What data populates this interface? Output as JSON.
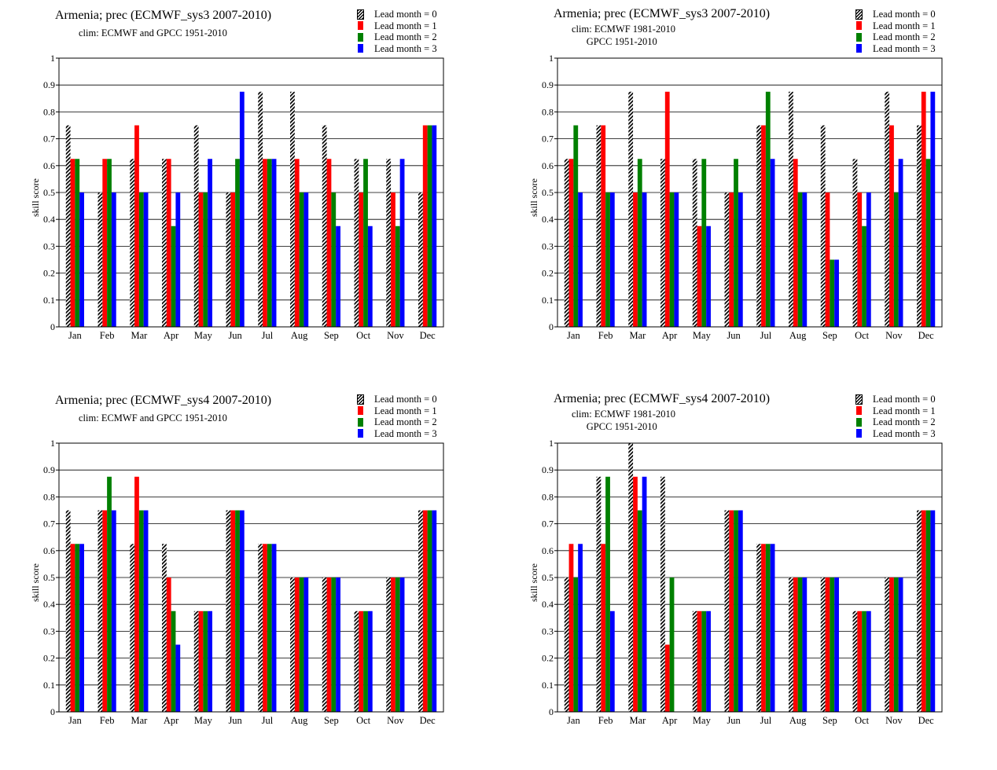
{
  "colors": {
    "lead1": "#ff0000",
    "lead2": "#008000",
    "lead3": "#0000ff",
    "hatch": "#000000"
  },
  "months": [
    "Jan",
    "Feb",
    "Mar",
    "Apr",
    "May",
    "Jun",
    "Jul",
    "Aug",
    "Sep",
    "Oct",
    "Nov",
    "Dec"
  ],
  "y_ticks": [
    "0",
    "0.1",
    "0.2",
    "0.3",
    "0.4",
    "0.5",
    "0.6",
    "0.7",
    "0.8",
    "0.9",
    "1"
  ],
  "ylabel": "skill  score",
  "legend": [
    "Lead month = 0",
    "Lead month = 1",
    "Lead month = 2",
    "Lead month = 3"
  ],
  "panels": [
    {
      "title": "Armenia; prec (ECMWF_sys3 2007-2010)",
      "clim": "clim: ECMWF and GPCC 1951-2010"
    },
    {
      "title": "Armenia; prec (ECMWF_sys3 2007-2010)",
      "clim": "clim: ECMWF 1981-2010\n      GPCC 1951-2010"
    },
    {
      "title": "Armenia; prec (ECMWF_sys4 2007-2010)",
      "clim": "clim: ECMWF and GPCC 1951-2010"
    },
    {
      "title": "Armenia; prec (ECMWF_sys4 2007-2010)",
      "clim": "clim: ECMWF 1981-2010\n      GPCC 1951-2010"
    }
  ],
  "chart_data": [
    {
      "type": "bar",
      "title": "Armenia; prec (ECMWF_sys3 2007-2010)",
      "ylabel": "skill  score",
      "ylim": [
        0,
        1
      ],
      "grid": true,
      "legend_position": "top-right",
      "categories": [
        "Jan",
        "Feb",
        "Mar",
        "Apr",
        "May",
        "Jun",
        "Jul",
        "Aug",
        "Sep",
        "Oct",
        "Nov",
        "Dec"
      ],
      "series": [
        {
          "name": "Lead month = 0",
          "values": [
            0.75,
            0.5,
            0.625,
            0.625,
            0.75,
            0.5,
            0.875,
            0.875,
            0.75,
            0.625,
            0.625,
            0.5
          ]
        },
        {
          "name": "Lead month = 1",
          "values": [
            0.625,
            0.625,
            0.75,
            0.625,
            0.5,
            0.5,
            0.625,
            0.625,
            0.625,
            0.5,
            0.5,
            0.75
          ]
        },
        {
          "name": "Lead month = 2",
          "values": [
            0.625,
            0.625,
            0.5,
            0.375,
            0.5,
            0.625,
            0.625,
            0.5,
            0.5,
            0.625,
            0.375,
            0.75
          ]
        },
        {
          "name": "Lead month = 3",
          "values": [
            0.5,
            0.5,
            0.5,
            0.5,
            0.625,
            0.875,
            0.625,
            0.5,
            0.375,
            0.375,
            0.625,
            0.75
          ]
        }
      ]
    },
    {
      "type": "bar",
      "title": "Armenia; prec (ECMWF_sys3 2007-2010)",
      "ylabel": "skill  score",
      "ylim": [
        0,
        1
      ],
      "grid": true,
      "legend_position": "top-right",
      "categories": [
        "Jan",
        "Feb",
        "Mar",
        "Apr",
        "May",
        "Jun",
        "Jul",
        "Aug",
        "Sep",
        "Oct",
        "Nov",
        "Dec"
      ],
      "series": [
        {
          "name": "Lead month = 0",
          "values": [
            0.625,
            0.75,
            0.875,
            0.625,
            0.625,
            0.5,
            0.75,
            0.875,
            0.75,
            0.625,
            0.875,
            0.75
          ]
        },
        {
          "name": "Lead month = 1",
          "values": [
            0.625,
            0.75,
            0.5,
            0.875,
            0.375,
            0.5,
            0.75,
            0.625,
            0.5,
            0.5,
            0.75,
            0.875
          ]
        },
        {
          "name": "Lead month = 2",
          "values": [
            0.75,
            0.5,
            0.625,
            0.5,
            0.625,
            0.625,
            0.875,
            0.5,
            0.25,
            0.375,
            0.5,
            0.625
          ]
        },
        {
          "name": "Lead month = 3",
          "values": [
            0.5,
            0.5,
            0.5,
            0.5,
            0.375,
            0.5,
            0.625,
            0.5,
            0.25,
            0.5,
            0.625,
            0.875
          ]
        }
      ]
    },
    {
      "type": "bar",
      "title": "Armenia; prec (ECMWF_sys4 2007-2010)",
      "ylabel": "skill  score",
      "ylim": [
        0,
        1
      ],
      "grid": true,
      "legend_position": "top-right",
      "categories": [
        "Jan",
        "Feb",
        "Mar",
        "Apr",
        "May",
        "Jun",
        "Jul",
        "Aug",
        "Sep",
        "Oct",
        "Nov",
        "Dec"
      ],
      "series": [
        {
          "name": "Lead month = 0",
          "values": [
            0.75,
            0.75,
            0.625,
            0.625,
            0.375,
            0.75,
            0.625,
            0.5,
            0.5,
            0.375,
            0.5,
            0.75
          ]
        },
        {
          "name": "Lead month = 1",
          "values": [
            0.625,
            0.75,
            0.875,
            0.5,
            0.375,
            0.75,
            0.625,
            0.5,
            0.5,
            0.375,
            0.5,
            0.75
          ]
        },
        {
          "name": "Lead month = 2",
          "values": [
            0.625,
            0.875,
            0.75,
            0.375,
            0.375,
            0.75,
            0.625,
            0.5,
            0.5,
            0.375,
            0.5,
            0.75
          ]
        },
        {
          "name": "Lead month = 3",
          "values": [
            0.625,
            0.75,
            0.75,
            0.25,
            0.375,
            0.75,
            0.625,
            0.5,
            0.5,
            0.375,
            0.5,
            0.75
          ]
        }
      ]
    },
    {
      "type": "bar",
      "title": "Armenia; prec (ECMWF_sys4 2007-2010)",
      "ylabel": "skill  score",
      "ylim": [
        0,
        1
      ],
      "grid": true,
      "legend_position": "top-right",
      "categories": [
        "Jan",
        "Feb",
        "Mar",
        "Apr",
        "May",
        "Jun",
        "Jul",
        "Aug",
        "Sep",
        "Oct",
        "Nov",
        "Dec"
      ],
      "series": [
        {
          "name": "Lead month = 0",
          "values": [
            0.5,
            0.875,
            1.0,
            0.875,
            0.375,
            0.75,
            0.625,
            0.5,
            0.5,
            0.375,
            0.5,
            0.75
          ]
        },
        {
          "name": "Lead month = 1",
          "values": [
            0.625,
            0.625,
            0.875,
            0.25,
            0.375,
            0.75,
            0.625,
            0.5,
            0.5,
            0.375,
            0.5,
            0.75
          ]
        },
        {
          "name": "Lead month = 2",
          "values": [
            0.5,
            0.875,
            0.75,
            0.5,
            0.375,
            0.75,
            0.625,
            0.5,
            0.5,
            0.375,
            0.5,
            0.75
          ]
        },
        {
          "name": "Lead month = 3",
          "values": [
            0.625,
            0.375,
            0.875,
            0.0,
            0.375,
            0.75,
            0.625,
            0.5,
            0.5,
            0.375,
            0.5,
            0.75
          ]
        }
      ]
    }
  ]
}
